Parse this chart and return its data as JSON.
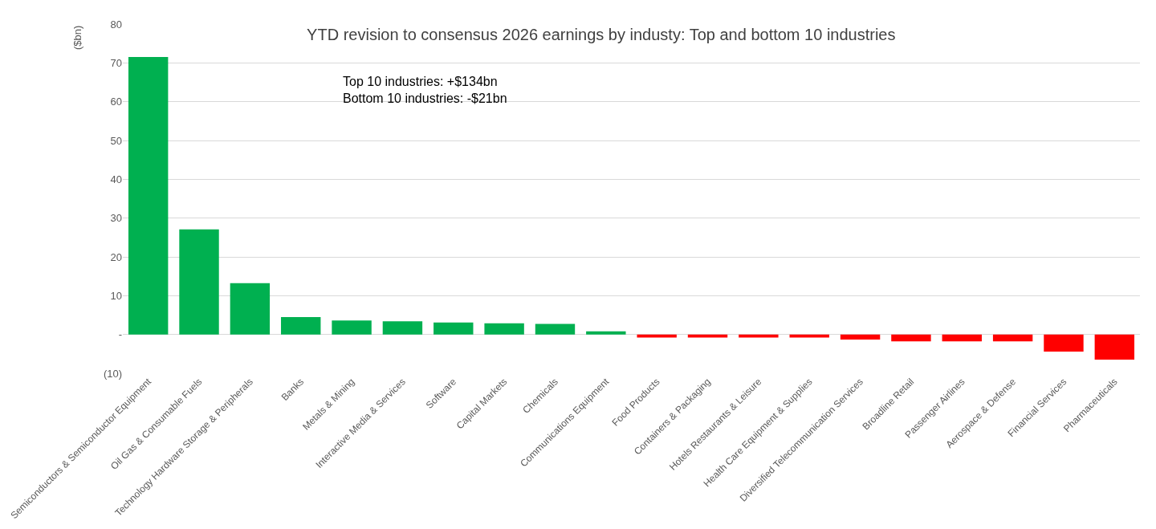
{
  "chart_data": {
    "type": "bar",
    "title": "YTD revision to consensus 2026 earnings by industy: Top and bottom 10 industries",
    "ylabel": "($bn)",
    "annotations": [
      "Top 10 industries: +$134bn",
      "Bottom 10 industries: -$21bn"
    ],
    "categories": [
      "Semiconductors & Semiconductor Equipment",
      "Oil Gas & Consumable Fuels",
      "Technology Hardware Storage & Peripherals",
      "Banks",
      "Metals & Mining",
      "Interactive Media & Services",
      "Software",
      "Capital Markets",
      "Chemicals",
      "Communications Equipment",
      "Food Products",
      "Containers & Packaging",
      "Hotels Restaurants & Leisure",
      "Health Care Equipment & Supplies",
      "Diversified Telecommunication Services",
      "Broadline Retail",
      "Passenger Airlines",
      "Aerospace & Defense",
      "Financial Services",
      "Pharmaceuticals"
    ],
    "values": [
      71.5,
      27.1,
      13.2,
      4.5,
      3.6,
      3.4,
      3.1,
      2.9,
      2.7,
      0.8,
      -0.8,
      -0.8,
      -0.8,
      -0.8,
      -1.3,
      -1.8,
      -1.8,
      -1.8,
      -4.4,
      -6.5
    ],
    "colors": [
      "#00b050",
      "#00b050",
      "#00b050",
      "#00b050",
      "#00b050",
      "#00b050",
      "#00b050",
      "#00b050",
      "#00b050",
      "#00b050",
      "#ff0000",
      "#ff0000",
      "#ff0000",
      "#ff0000",
      "#ff0000",
      "#ff0000",
      "#ff0000",
      "#ff0000",
      "#ff0000",
      "#ff0000"
    ],
    "ylim": [
      -10,
      80
    ],
    "yticks": [
      {
        "value": -10,
        "label": "(10)"
      },
      {
        "value": 0,
        "label": "-"
      },
      10,
      20,
      30,
      40,
      50,
      60,
      70,
      80
    ],
    "grid": "y"
  }
}
